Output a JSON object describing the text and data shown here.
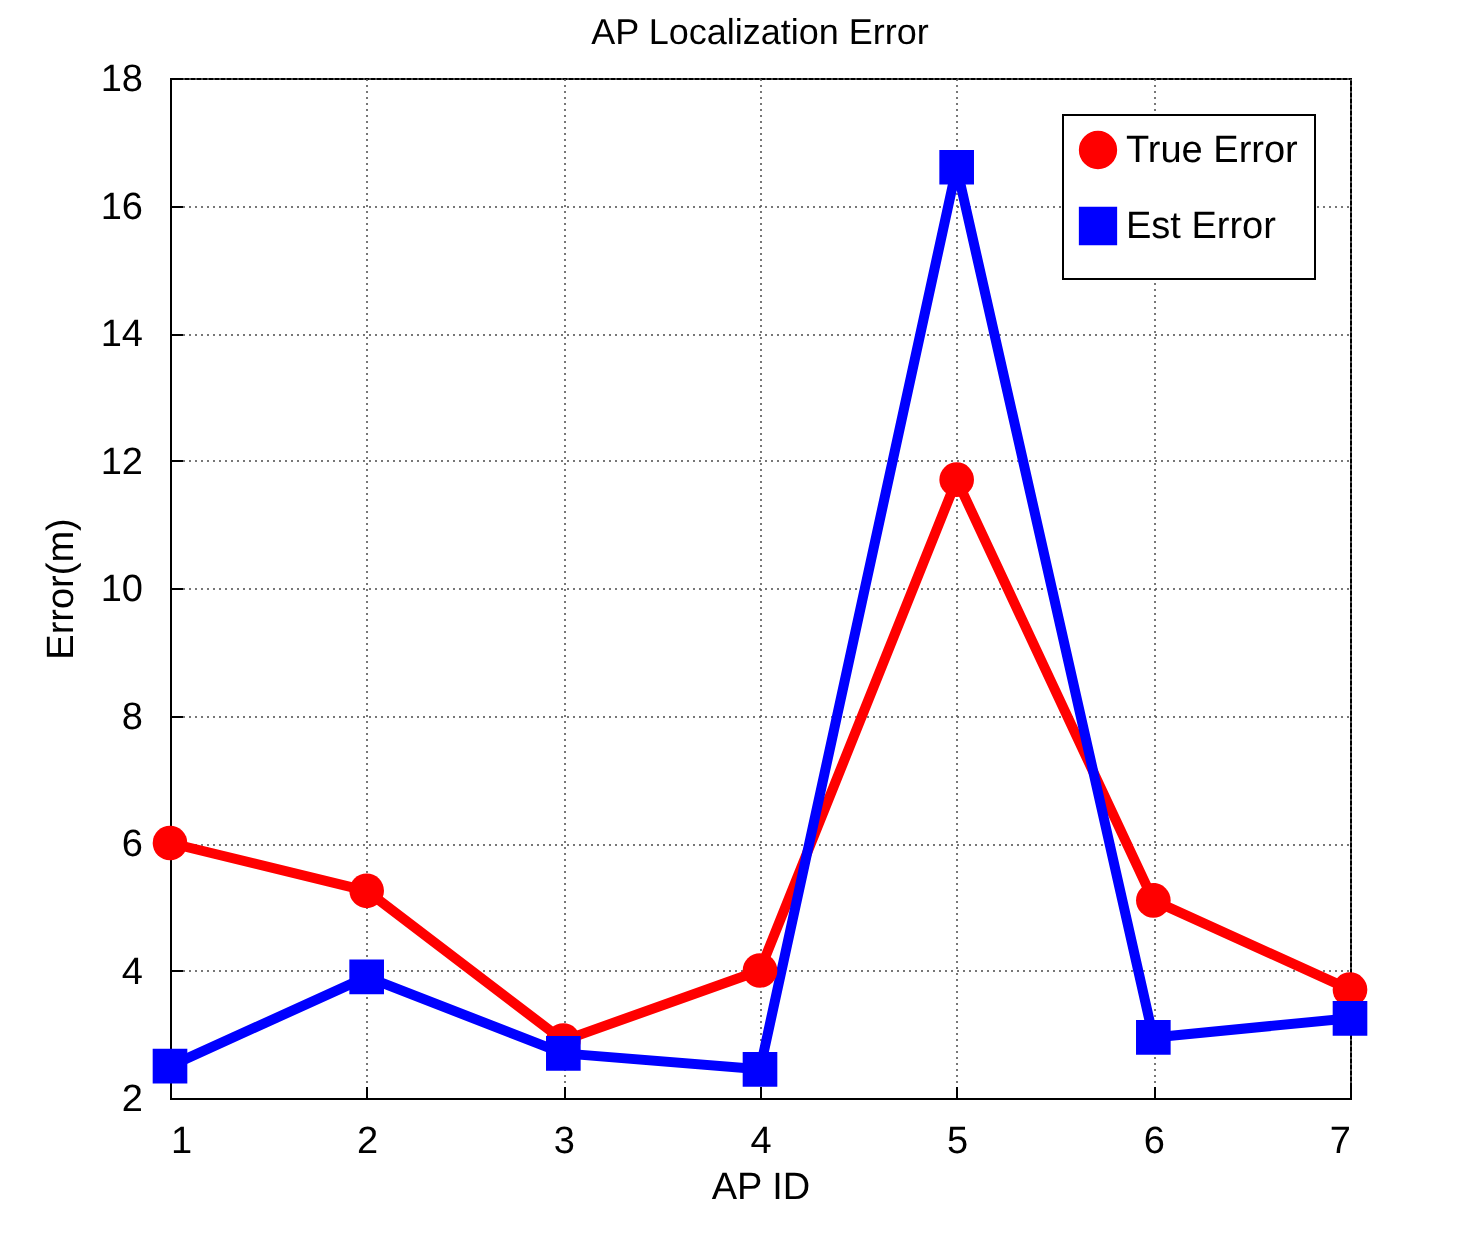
{
  "chart_data": {
    "type": "line",
    "title": "AP Localization Error",
    "xlabel": "AP ID",
    "ylabel": "Error(m)",
    "x": [
      1,
      2,
      3,
      4,
      5,
      6,
      7
    ],
    "series": [
      {
        "name": "True Error",
        "color": "#ff0000",
        "marker": "circle",
        "values": [
          6.0,
          5.25,
          2.9,
          4.0,
          11.7,
          5.1,
          3.7
        ]
      },
      {
        "name": "Est Error",
        "color": "#0000ff",
        "marker": "square",
        "values": [
          2.5,
          3.9,
          2.7,
          2.45,
          16.6,
          2.95,
          3.25
        ]
      }
    ],
    "xlim": [
      1,
      7
    ],
    "xticks": [
      1,
      2,
      3,
      4,
      5,
      6,
      7
    ],
    "ylim": [
      2,
      18
    ],
    "yticks": [
      2,
      4,
      6,
      8,
      10,
      12,
      14,
      16,
      18
    ],
    "grid": true,
    "legend": "top right",
    "line_style": "solid"
  }
}
